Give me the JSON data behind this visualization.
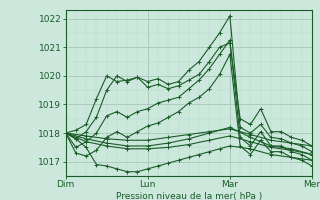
{
  "bg_color": "#cce8dc",
  "grid_major_color": "#aaccbb",
  "grid_minor_color": "#bbd8cc",
  "line_color": "#1a5c28",
  "xlabel": "Pression niveau de la mer( hPa )",
  "xlim": [
    0,
    72
  ],
  "ylim": [
    1016.5,
    1022.3
  ],
  "yticks": [
    1017,
    1018,
    1019,
    1020,
    1021,
    1022
  ],
  "xtick_positions": [
    0,
    24,
    48,
    72
  ],
  "xtick_labels": [
    "Dim",
    "Lun",
    "Mar",
    "Mer"
  ],
  "series": [
    [
      0,
      1018.0,
      3,
      1018.1,
      6,
      1018.3,
      9,
      1019.2,
      12,
      1020.0,
      15,
      1019.8,
      18,
      1019.85,
      21,
      1019.95,
      24,
      1019.6,
      27,
      1019.7,
      30,
      1019.55,
      33,
      1019.65,
      36,
      1019.85,
      39,
      1020.05,
      42,
      1020.5,
      45,
      1021.0,
      48,
      1021.15,
      51,
      1018.5,
      54,
      1018.3,
      57,
      1018.85,
      60,
      1018.05,
      63,
      1018.05,
      66,
      1017.85,
      69,
      1017.75,
      72,
      1017.55
    ],
    [
      0,
      1018.0,
      3,
      1017.8,
      6,
      1018.05,
      9,
      1018.55,
      12,
      1019.5,
      15,
      1020.0,
      18,
      1019.8,
      21,
      1019.95,
      24,
      1019.8,
      27,
      1019.9,
      30,
      1019.7,
      33,
      1019.8,
      36,
      1020.2,
      39,
      1020.5,
      42,
      1021.0,
      45,
      1021.5,
      48,
      1022.1,
      51,
      1018.2,
      54,
      1018.0,
      57,
      1018.3,
      60,
      1017.85,
      63,
      1017.8,
      66,
      1017.65,
      69,
      1017.55,
      72,
      1017.35
    ],
    [
      0,
      1018.0,
      3,
      1017.5,
      6,
      1017.7,
      9,
      1018.0,
      12,
      1018.6,
      15,
      1018.75,
      18,
      1018.55,
      21,
      1018.75,
      24,
      1018.85,
      27,
      1019.05,
      30,
      1019.15,
      33,
      1019.25,
      36,
      1019.55,
      39,
      1019.85,
      42,
      1020.25,
      45,
      1020.75,
      48,
      1021.25,
      51,
      1017.85,
      54,
      1017.55,
      57,
      1018.05,
      60,
      1017.55,
      63,
      1017.55,
      66,
      1017.35,
      69,
      1017.25,
      72,
      1017.05
    ],
    [
      0,
      1018.0,
      3,
      1017.3,
      6,
      1017.2,
      9,
      1017.4,
      12,
      1017.85,
      15,
      1018.05,
      18,
      1017.85,
      21,
      1018.05,
      24,
      1018.25,
      27,
      1018.35,
      30,
      1018.55,
      33,
      1018.75,
      36,
      1019.05,
      39,
      1019.25,
      42,
      1019.55,
      45,
      1020.05,
      48,
      1020.75,
      51,
      1017.55,
      54,
      1017.25,
      57,
      1017.75,
      60,
      1017.35,
      63,
      1017.35,
      66,
      1017.15,
      69,
      1017.05,
      72,
      1016.85
    ],
    [
      0,
      1018.0,
      6,
      1017.9,
      12,
      1017.8,
      18,
      1017.75,
      24,
      1017.75,
      30,
      1017.85,
      36,
      1017.95,
      42,
      1018.05,
      48,
      1018.15,
      54,
      1017.95,
      60,
      1017.75,
      66,
      1017.65,
      72,
      1017.55
    ],
    [
      0,
      1018.0,
      6,
      1017.8,
      12,
      1017.65,
      18,
      1017.55,
      24,
      1017.55,
      30,
      1017.65,
      36,
      1017.8,
      42,
      1018.0,
      48,
      1018.2,
      54,
      1017.85,
      60,
      1017.55,
      66,
      1017.45,
      72,
      1017.25
    ],
    [
      0,
      1018.0,
      3,
      1017.8,
      6,
      1017.5,
      9,
      1016.9,
      12,
      1016.85,
      15,
      1016.75,
      18,
      1016.65,
      21,
      1016.65,
      24,
      1016.75,
      27,
      1016.85,
      30,
      1016.95,
      33,
      1017.05,
      36,
      1017.15,
      39,
      1017.25,
      42,
      1017.35,
      45,
      1017.45,
      48,
      1017.55,
      54,
      1017.45,
      60,
      1017.25,
      66,
      1017.15,
      72,
      1017.05
    ],
    [
      0,
      1018.0,
      6,
      1017.7,
      12,
      1017.55,
      18,
      1017.45,
      24,
      1017.45,
      30,
      1017.5,
      36,
      1017.6,
      42,
      1017.75,
      48,
      1017.9,
      54,
      1017.7,
      60,
      1017.5,
      66,
      1017.4,
      72,
      1017.25
    ]
  ]
}
